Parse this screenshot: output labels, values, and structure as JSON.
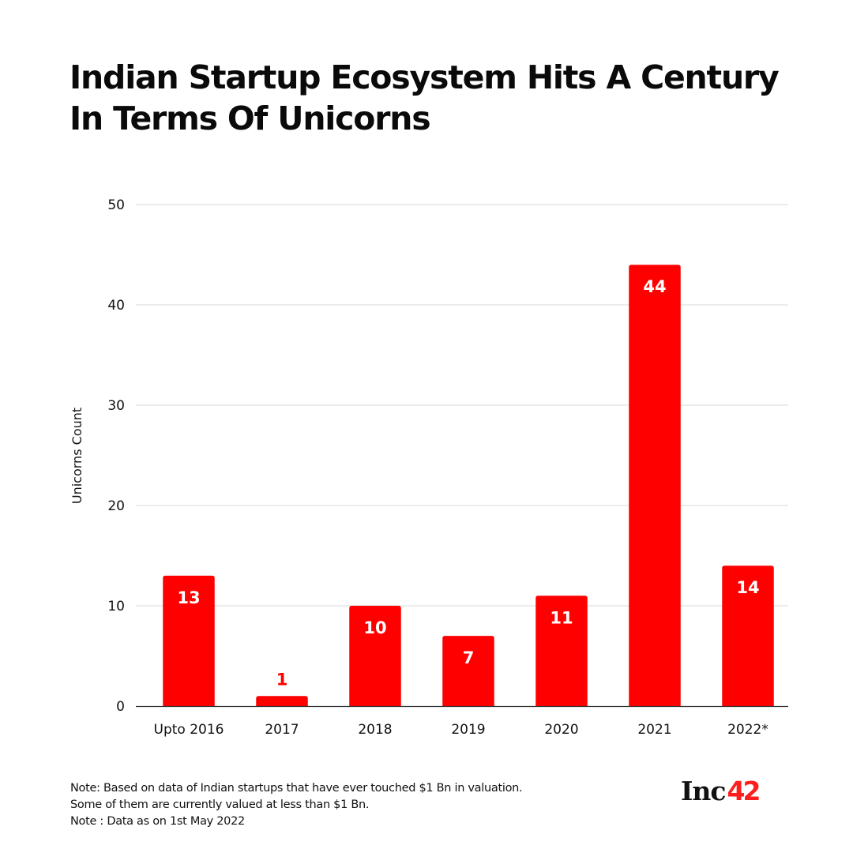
{
  "title": "Indian Startup Ecosystem Hits A Century In Terms Of Unicorns",
  "notes": [
    "Note: Based on data of Indian startups that have ever touched $1 Bn in valuation.",
    "Some of them are currently valued at less than $1 Bn.",
    "Note : Data as on 1st May 2022"
  ],
  "logo": {
    "text": "Inc",
    "number": "42",
    "number_color": "#FF1E1E"
  },
  "colors": {
    "bar": "#FF0000",
    "label_inside": "#FFFFFF",
    "label_outside": "#FF0000",
    "grid": "#D9D9D9",
    "axis": "#333333"
  },
  "chart_data": {
    "type": "bar",
    "title": "Indian Startup Ecosystem Hits A Century In Terms Of Unicorns",
    "xlabel": "",
    "ylabel": "Unicorns Count",
    "categories": [
      "Upto 2016",
      "2017",
      "2018",
      "2019",
      "2020",
      "2021",
      "2022*"
    ],
    "values": [
      13,
      1,
      10,
      7,
      11,
      44,
      14
    ],
    "data_labels": [
      "13",
      "1",
      "10",
      "7",
      "11",
      "44",
      "14"
    ],
    "ylim": [
      0,
      50
    ],
    "yticks": [
      0,
      10,
      20,
      30,
      40,
      50
    ],
    "grid": true,
    "legend": "none"
  }
}
